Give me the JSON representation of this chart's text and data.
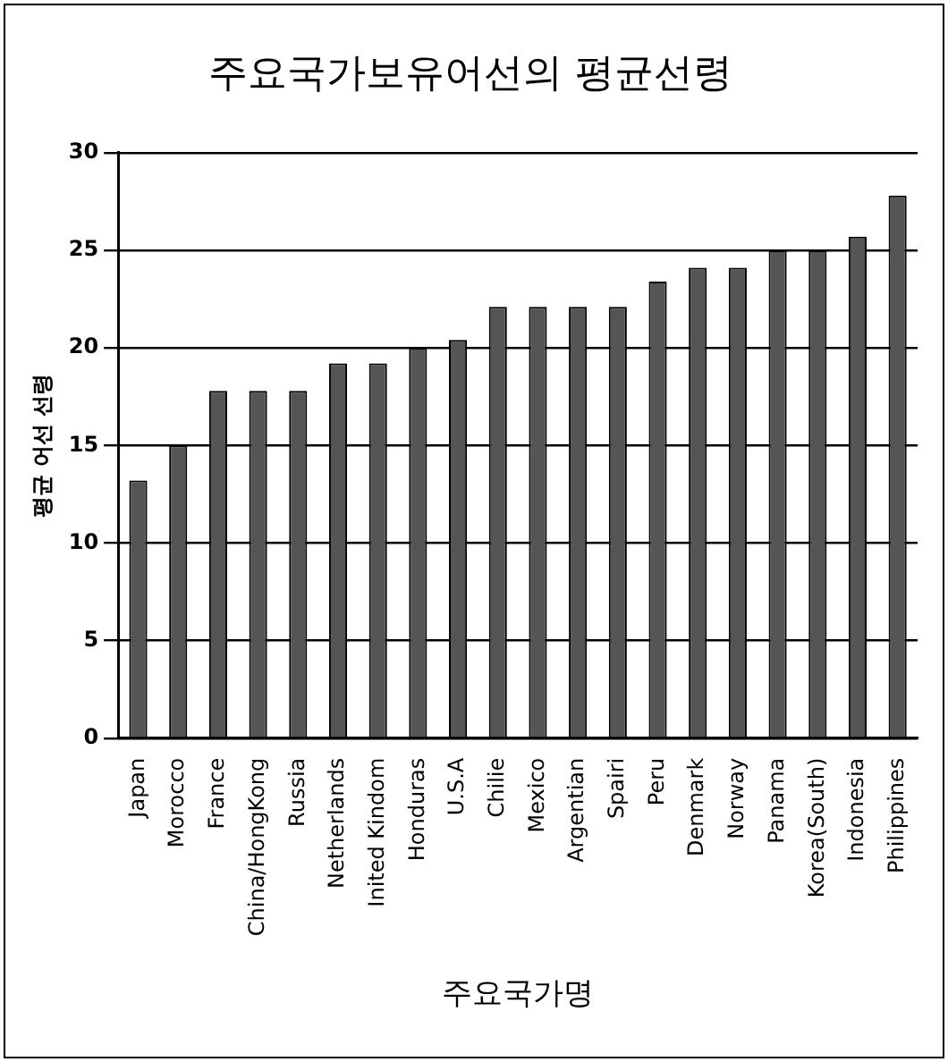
{
  "chart_data": {
    "type": "bar",
    "title": "주요국가보유어선의 평균선령",
    "xlabel": "주요국가명",
    "ylabel": "평균 어선 선령",
    "categories": [
      "Japan",
      "Morocco",
      "France",
      "China/HongKong",
      "Russia",
      "Netherlands",
      "Inited Kindom",
      "Honduras",
      "U.S.A",
      "Chilie",
      "Mexico",
      "Argentian",
      "Spairi",
      "Peru",
      "Denmark",
      "Norway",
      "Panama",
      "Korea(South)",
      "Indonesia",
      "Philippines"
    ],
    "values": [
      13.2,
      15,
      17.8,
      17.8,
      17.8,
      19.2,
      19.2,
      20,
      20.4,
      22.1,
      22.1,
      22.1,
      22.1,
      23.4,
      24.1,
      24.1,
      25,
      25,
      25.7,
      27.8
    ],
    "color": "#555555",
    "ylim": [
      0,
      30
    ],
    "yticks": [
      0,
      5,
      10,
      15,
      20,
      25,
      30
    ],
    "grid": "y",
    "legend": false
  }
}
